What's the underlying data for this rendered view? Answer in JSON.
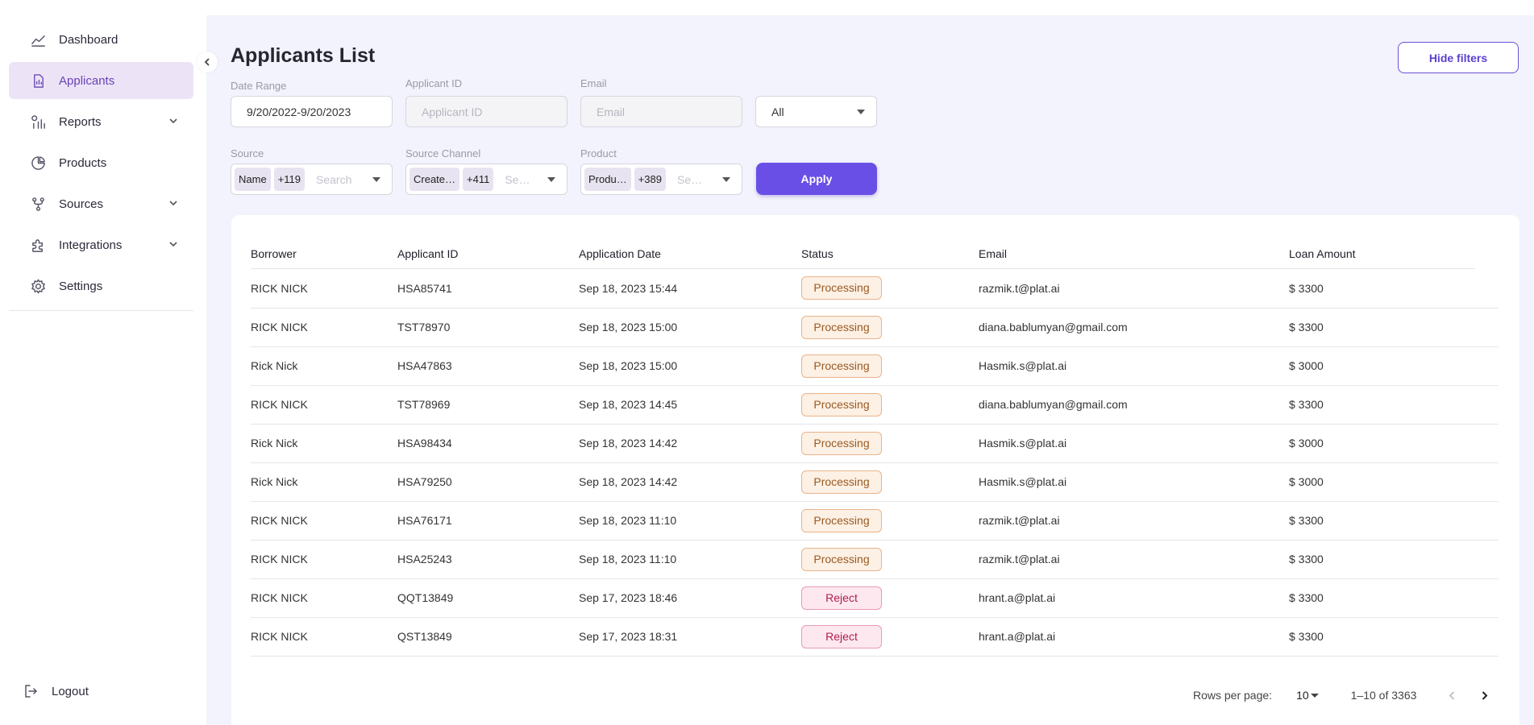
{
  "sidebar": {
    "items": [
      {
        "label": "Dashboard",
        "icon": "chart-line-icon",
        "active": false,
        "expandable": false
      },
      {
        "label": "Applicants",
        "icon": "document-icon",
        "active": true,
        "expandable": false
      },
      {
        "label": "Reports",
        "icon": "reports-icon",
        "active": false,
        "expandable": true
      },
      {
        "label": "Products",
        "icon": "pie-chart-icon",
        "active": false,
        "expandable": false
      },
      {
        "label": "Sources",
        "icon": "branch-icon",
        "active": false,
        "expandable": true
      },
      {
        "label": "Integrations",
        "icon": "puzzle-icon",
        "active": false,
        "expandable": true
      },
      {
        "label": "Settings",
        "icon": "gear-icon",
        "active": false,
        "expandable": false
      }
    ],
    "logout_label": "Logout"
  },
  "page": {
    "title": "Applicants List",
    "hide_filters_label": "Hide filters"
  },
  "filters": {
    "date_range": {
      "label": "Date Range",
      "value": "9/20/2022-9/20/2023"
    },
    "applicant_id": {
      "label": "Applicant ID",
      "placeholder": "Applicant ID"
    },
    "email": {
      "label": "Email",
      "placeholder": "Email"
    },
    "status_select": {
      "value": "All"
    },
    "source": {
      "label": "Source",
      "chip": "Name",
      "count": "+119",
      "placeholder": "Search"
    },
    "source_channel": {
      "label": "Source Channel",
      "chip": "Create…",
      "count": "+411",
      "placeholder": "Se…"
    },
    "product": {
      "label": "Product",
      "chip": "Produ…",
      "count": "+389",
      "placeholder": "Se…"
    },
    "apply_label": "Apply"
  },
  "table": {
    "columns": [
      "Borrower",
      "Applicant ID",
      "Application Date",
      "Status",
      "Email",
      "Loan Amount"
    ],
    "rows": [
      {
        "borrower": "RICK NICK",
        "id": "HSA85741",
        "date": "Sep 18, 2023 15:44",
        "status": "Processing",
        "email": "razmik.t@plat.ai",
        "amount": "$ 3300"
      },
      {
        "borrower": "RICK NICK",
        "id": "TST78970",
        "date": "Sep 18, 2023 15:00",
        "status": "Processing",
        "email": "diana.bablumyan@gmail.com",
        "amount": "$ 3300"
      },
      {
        "borrower": "Rick Nick",
        "id": "HSA47863",
        "date": "Sep 18, 2023 15:00",
        "status": "Processing",
        "email": "Hasmik.s@plat.ai",
        "amount": "$ 3000"
      },
      {
        "borrower": "RICK NICK",
        "id": "TST78969",
        "date": "Sep 18, 2023 14:45",
        "status": "Processing",
        "email": "diana.bablumyan@gmail.com",
        "amount": "$ 3300"
      },
      {
        "borrower": "Rick Nick",
        "id": "HSA98434",
        "date": "Sep 18, 2023 14:42",
        "status": "Processing",
        "email": "Hasmik.s@plat.ai",
        "amount": "$ 3000"
      },
      {
        "borrower": "Rick Nick",
        "id": "HSA79250",
        "date": "Sep 18, 2023 14:42",
        "status": "Processing",
        "email": "Hasmik.s@plat.ai",
        "amount": "$ 3000"
      },
      {
        "borrower": "RICK NICK",
        "id": "HSA76171",
        "date": "Sep 18, 2023 11:10",
        "status": "Processing",
        "email": "razmik.t@plat.ai",
        "amount": "$ 3300"
      },
      {
        "borrower": "RICK NICK",
        "id": "HSA25243",
        "date": "Sep 18, 2023 11:10",
        "status": "Processing",
        "email": "razmik.t@plat.ai",
        "amount": "$ 3300"
      },
      {
        "borrower": "RICK NICK",
        "id": "QQT13849",
        "date": "Sep 17, 2023 18:46",
        "status": "Reject",
        "email": "hrant.a@plat.ai",
        "amount": "$ 3300"
      },
      {
        "borrower": "RICK NICK",
        "id": "QST13849",
        "date": "Sep 17, 2023 18:31",
        "status": "Reject",
        "email": "hrant.a@plat.ai",
        "amount": "$ 3300"
      }
    ]
  },
  "pagination": {
    "rows_per_page_label": "Rows per page:",
    "rows_per_page_value": "10",
    "range": "1–10 of 3363"
  },
  "colors": {
    "accent": "#6a4fe6",
    "sidebar_active_bg": "#ece4f6",
    "main_bg": "#f2f3fc",
    "processing": "#9a5a22",
    "reject": "#b0204c"
  }
}
